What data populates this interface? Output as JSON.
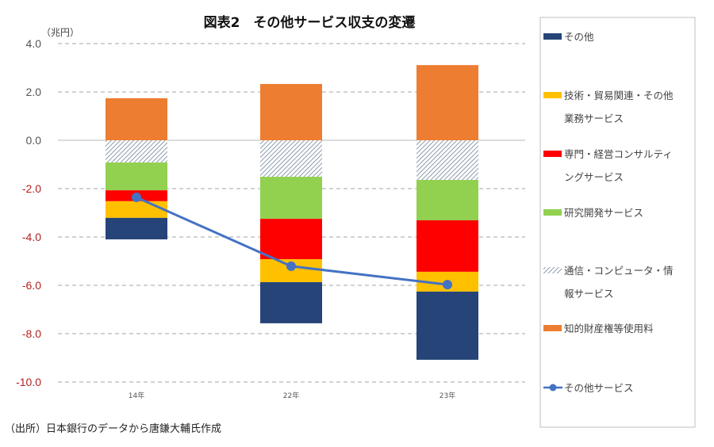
{
  "chart_data": {
    "type": "bar",
    "subtype": "stacked-bar-with-line",
    "title": "図表2　その他サービス収支の変遷",
    "ylabel": "（兆円）",
    "xlabel": "",
    "ylim": [
      -10.0,
      4.0
    ],
    "yticks": [
      4.0,
      2.0,
      0.0,
      -2.0,
      -4.0,
      -6.0,
      -8.0,
      -10.0
    ],
    "ytick_labels": [
      "4.0",
      "2.0",
      "0.0",
      "-2.0",
      "-4.0",
      "-6.0",
      "-8.0",
      "-10.0"
    ],
    "ytick_colors": {
      "positive": "#555555",
      "zero": "#555555",
      "negative": "#b22222"
    },
    "grid": true,
    "legend_position": "right",
    "categories": [
      "14年",
      "22年",
      "23年"
    ],
    "series": [
      {
        "name": "その他",
        "color": "#264478",
        "pattern": "solid",
        "values": [
          -0.89,
          -1.7,
          -2.82
        ]
      },
      {
        "name": "技術・貿易関連・その他業務サービス",
        "color": "#FFC000",
        "pattern": "solid",
        "values": [
          -0.69,
          -0.95,
          -0.82
        ]
      },
      {
        "name": "専門・経営コンサルティングサービス",
        "color": "#FF0000",
        "pattern": "solid",
        "values": [
          -0.45,
          -1.67,
          -2.13
        ]
      },
      {
        "name": "研究開発サービス",
        "color": "#92D050",
        "pattern": "solid",
        "values": [
          -1.15,
          -1.74,
          -1.67
        ]
      },
      {
        "name": "通信・コンピュータ・情報サービス",
        "color": "#8497B0",
        "pattern": "hatched",
        "values": [
          -0.92,
          -1.51,
          -1.64
        ]
      },
      {
        "name": "知的財産権等使用料",
        "color": "#ED7D31",
        "pattern": "solid",
        "values": [
          1.74,
          2.33,
          3.11
        ]
      }
    ],
    "line_series": {
      "name": "その他サービス",
      "color": "#4472C4",
      "marker": "circle",
      "values": [
        -2.36,
        -5.21,
        -5.97
      ]
    },
    "legend": [
      {
        "label_lines": [
          "その他"
        ],
        "series_index": 0
      },
      {
        "label_lines": [
          "技術・貿易関連・その他",
          "業務サービス"
        ],
        "series_index": 1
      },
      {
        "label_lines": [
          "専門・経営コンサルティ",
          "ングサービス"
        ],
        "series_index": 2
      },
      {
        "label_lines": [
          "研究開発サービス"
        ],
        "series_index": 3
      },
      {
        "label_lines": [
          "通信・コンピュータ・情",
          "報サービス"
        ],
        "series_index": 4
      },
      {
        "label_lines": [
          "知的財産権等使用料"
        ],
        "series_index": 5
      },
      {
        "label_lines": [
          "その他サービス"
        ],
        "series_index": "line"
      }
    ],
    "source_note": "（出所）日本銀行のデータから唐鎌大輔氏作成"
  }
}
